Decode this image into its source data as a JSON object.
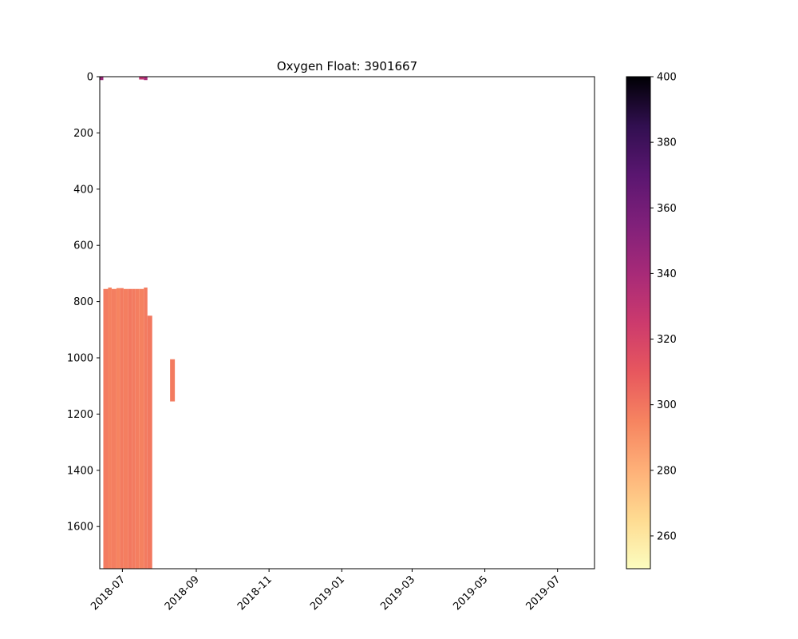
{
  "chart_data": {
    "type": "heatmap",
    "title": "Oxygen Float: 3901667",
    "xlabel": "",
    "ylabel": "",
    "x_axis": {
      "kind": "date",
      "range": [
        "2018-06-12",
        "2019-08-01"
      ],
      "ticks": [
        "2018-07",
        "2018-09",
        "2018-11",
        "2019-01",
        "2019-03",
        "2019-05",
        "2019-07"
      ],
      "tick_dates": [
        "2018-07-01",
        "2018-09-01",
        "2018-11-01",
        "2019-01-01",
        "2019-03-01",
        "2019-05-01",
        "2019-07-01"
      ]
    },
    "y_axis": {
      "inverted": true,
      "range": [
        0,
        1750
      ],
      "ticks": [
        0,
        200,
        400,
        600,
        800,
        1000,
        1200,
        1400,
        1600
      ]
    },
    "colorbar": {
      "colormap": "magma_r",
      "range": [
        250,
        400
      ],
      "ticks": [
        260,
        280,
        300,
        320,
        340,
        360,
        380,
        400
      ]
    },
    "grid": false,
    "cells": [
      {
        "start": "2018-06-12",
        "end": "2018-06-15",
        "depth_top": 0,
        "depth_bottom": 12,
        "value": 345
      },
      {
        "start": "2018-06-15",
        "end": "2018-06-19",
        "depth_top": 755,
        "depth_bottom": 1750,
        "value": 298
      },
      {
        "start": "2018-06-19",
        "end": "2018-06-22",
        "depth_top": 750,
        "depth_bottom": 1750,
        "value": 296
      },
      {
        "start": "2018-06-22",
        "end": "2018-06-26",
        "depth_top": 755,
        "depth_bottom": 1750,
        "value": 297
      },
      {
        "start": "2018-06-26",
        "end": "2018-06-29",
        "depth_top": 752,
        "depth_bottom": 1750,
        "value": 295
      },
      {
        "start": "2018-06-29",
        "end": "2018-07-02",
        "depth_top": 752,
        "depth_bottom": 1750,
        "value": 298
      },
      {
        "start": "2018-07-02",
        "end": "2018-07-06",
        "depth_top": 755,
        "depth_bottom": 1750,
        "value": 297
      },
      {
        "start": "2018-07-06",
        "end": "2018-07-09",
        "depth_top": 755,
        "depth_bottom": 1750,
        "value": 299
      },
      {
        "start": "2018-07-09",
        "end": "2018-07-12",
        "depth_top": 755,
        "depth_bottom": 1750,
        "value": 298
      },
      {
        "start": "2018-07-12",
        "end": "2018-07-15",
        "depth_top": 755,
        "depth_bottom": 1750,
        "value": 297
      },
      {
        "start": "2018-07-15",
        "end": "2018-07-19",
        "depth_top": 0,
        "depth_bottom": 10,
        "value": 330
      },
      {
        "start": "2018-07-15",
        "end": "2018-07-19",
        "depth_top": 755,
        "depth_bottom": 1750,
        "value": 296
      },
      {
        "start": "2018-07-19",
        "end": "2018-07-22",
        "depth_top": 0,
        "depth_bottom": 12,
        "value": 340
      },
      {
        "start": "2018-07-19",
        "end": "2018-07-22",
        "depth_top": 750,
        "depth_bottom": 1750,
        "value": 298
      },
      {
        "start": "2018-07-22",
        "end": "2018-07-26",
        "depth_top": 850,
        "depth_bottom": 1750,
        "value": 299
      },
      {
        "start": "2018-08-10",
        "end": "2018-08-14",
        "depth_top": 1005,
        "depth_bottom": 1155,
        "value": 298
      }
    ]
  }
}
